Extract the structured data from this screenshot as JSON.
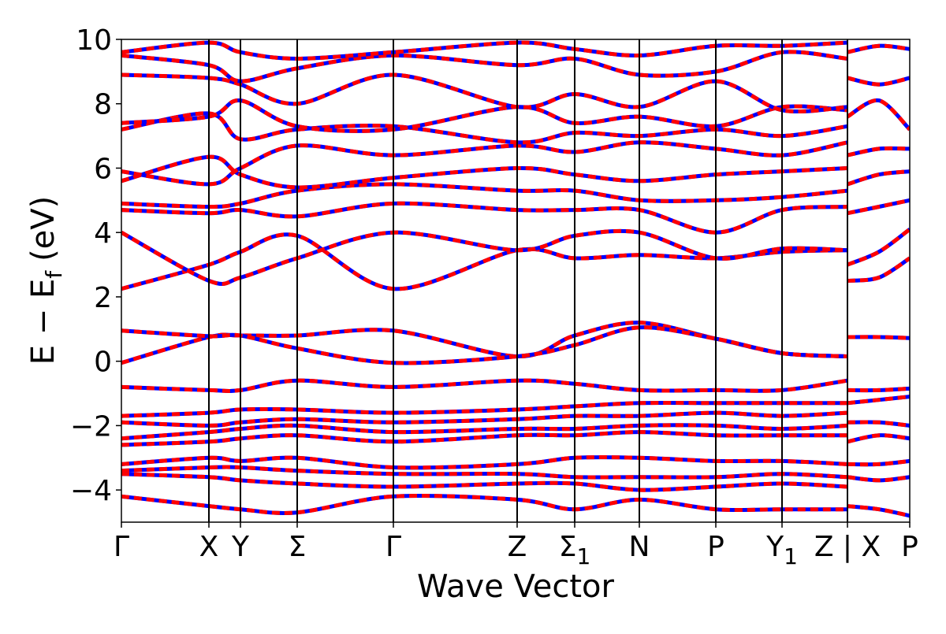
{
  "chart_data": {
    "type": "line",
    "xlabel": "Wave Vector",
    "ylabel": "E − E",
    "ylabel_subscript": "f",
    "ylabel_unit": "(eV)",
    "ylim": [
      -5,
      10
    ],
    "yticks": [
      -4,
      -2,
      0,
      2,
      4,
      6,
      8,
      10
    ],
    "xlim": [
      0,
      1
    ],
    "grid": false,
    "colors": {
      "dft": "#0000ff",
      "wannier": "#ff0000",
      "kpath_lines": "#000000"
    },
    "x_ticks": [
      {
        "label": "Γ",
        "sub": "",
        "x": 0.0
      },
      {
        "label": "X",
        "sub": "",
        "x": 0.111
      },
      {
        "label": "Y",
        "sub": "",
        "x": 0.151
      },
      {
        "label": "Σ",
        "sub": "",
        "x": 0.223
      },
      {
        "label": "Γ",
        "sub": "",
        "x": 0.345
      },
      {
        "label": "Z",
        "sub": "",
        "x": 0.502
      },
      {
        "label": "Σ",
        "sub": "1",
        "x": 0.575
      },
      {
        "label": "N",
        "sub": "",
        "x": 0.657
      },
      {
        "label": "P",
        "sub": "",
        "x": 0.754
      },
      {
        "label": "Y",
        "sub": "1",
        "x": 0.838
      },
      {
        "label": "Z | X",
        "sub": "",
        "x": 0.921
      },
      {
        "label": "P",
        "sub": "",
        "x": 1.0
      }
    ],
    "series": [
      {
        "x": [
          0,
          0.111,
          0.151,
          0.223,
          0.345,
          0.502,
          0.575,
          0.657,
          0.754,
          0.838,
          0.921
        ],
        "values": [
          -4.2,
          -4.5,
          -4.6,
          -4.7,
          -4.2,
          -4.3,
          -4.6,
          -4.3,
          -4.6,
          -4.6,
          -4.6
        ]
      },
      {
        "x": [
          0,
          0.111,
          0.151,
          0.223,
          0.345,
          0.502,
          0.575,
          0.657,
          0.754,
          0.838,
          0.921
        ],
        "values": [
          -3.5,
          -3.6,
          -3.7,
          -3.8,
          -3.9,
          -3.8,
          -3.8,
          -4.0,
          -3.9,
          -3.8,
          -3.9
        ]
      },
      {
        "x": [
          0,
          0.111,
          0.151,
          0.223,
          0.345,
          0.502,
          0.575,
          0.657,
          0.754,
          0.838,
          0.921
        ],
        "values": [
          -3.4,
          -3.3,
          -3.3,
          -3.4,
          -3.5,
          -3.5,
          -3.6,
          -3.6,
          -3.6,
          -3.5,
          -3.6
        ]
      },
      {
        "x": [
          0,
          0.111,
          0.151,
          0.223,
          0.345,
          0.502,
          0.575,
          0.657,
          0.754,
          0.838,
          0.921
        ],
        "values": [
          -3.2,
          -3.0,
          -3.1,
          -3.0,
          -3.3,
          -3.2,
          -3.0,
          -3.0,
          -3.1,
          -3.1,
          -3.2
        ]
      },
      {
        "x": [
          0,
          0.111,
          0.151,
          0.223,
          0.345,
          0.502,
          0.575,
          0.657,
          0.754,
          0.838,
          0.921
        ],
        "values": [
          -2.6,
          -2.5,
          -2.4,
          -2.3,
          -2.5,
          -2.3,
          -2.3,
          -2.2,
          -2.3,
          -2.3,
          -2.3
        ]
      },
      {
        "x": [
          0,
          0.111,
          0.151,
          0.223,
          0.345,
          0.502,
          0.575,
          0.657,
          0.754,
          0.838,
          0.921
        ],
        "values": [
          -2.4,
          -2.2,
          -2.1,
          -2.0,
          -2.2,
          -2.1,
          -2.1,
          -2.0,
          -2.0,
          -2.1,
          -2.0
        ]
      },
      {
        "x": [
          0,
          0.111,
          0.151,
          0.223,
          0.345,
          0.502,
          0.575,
          0.657,
          0.754,
          0.838,
          0.921
        ],
        "values": [
          -1.9,
          -2.0,
          -1.9,
          -1.8,
          -1.9,
          -1.8,
          -1.7,
          -1.7,
          -1.6,
          -1.7,
          -1.6
        ]
      },
      {
        "x": [
          0,
          0.111,
          0.151,
          0.223,
          0.345,
          0.502,
          0.575,
          0.657,
          0.754,
          0.838,
          0.921
        ],
        "values": [
          -1.7,
          -1.6,
          -1.5,
          -1.5,
          -1.6,
          -1.5,
          -1.4,
          -1.3,
          -1.3,
          -1.3,
          -1.3
        ]
      },
      {
        "x": [
          0,
          0.111,
          0.151,
          0.223,
          0.345,
          0.502,
          0.575,
          0.657,
          0.754,
          0.838,
          0.921
        ],
        "values": [
          -0.8,
          -0.9,
          -0.9,
          -0.6,
          -0.8,
          -0.6,
          -0.7,
          -0.9,
          -0.9,
          -0.9,
          -0.6
        ]
      },
      {
        "x": [
          0,
          0.111,
          0.151,
          0.223,
          0.345,
          0.502,
          0.575,
          0.657,
          0.754,
          0.838,
          0.921
        ],
        "values": [
          -0.05,
          0.75,
          0.8,
          0.8,
          0.95,
          0.15,
          0.8,
          1.2,
          0.7,
          0.25,
          0.15
        ]
      },
      {
        "x": [
          0,
          0.111,
          0.151,
          0.223,
          0.345,
          0.502,
          0.575,
          0.657,
          0.754,
          0.838,
          0.921
        ],
        "values": [
          0.95,
          0.78,
          0.8,
          0.4,
          -0.05,
          0.15,
          0.5,
          1.05,
          0.7,
          0.25,
          0.15
        ]
      },
      {
        "x": [
          0,
          0.111,
          0.151,
          0.223,
          0.345,
          0.502,
          0.575,
          0.657,
          0.754,
          0.838,
          0.921
        ],
        "values": [
          2.25,
          3.0,
          3.4,
          3.9,
          2.25,
          3.45,
          3.2,
          3.3,
          3.2,
          3.4,
          3.45
        ]
      },
      {
        "x": [
          0,
          0.111,
          0.151,
          0.223,
          0.345,
          0.502,
          0.575,
          0.657,
          0.754,
          0.838,
          0.921
        ],
        "values": [
          4.0,
          2.5,
          2.6,
          3.2,
          4.0,
          3.45,
          3.9,
          4.0,
          3.2,
          3.5,
          3.45
        ]
      },
      {
        "x": [
          0,
          0.111,
          0.151,
          0.223,
          0.345,
          0.502,
          0.575,
          0.657,
          0.754,
          0.838,
          0.921
        ],
        "values": [
          4.7,
          4.6,
          4.7,
          4.5,
          4.9,
          4.7,
          4.7,
          4.7,
          4.0,
          4.7,
          4.8
        ]
      },
      {
        "x": [
          0,
          0.111,
          0.151,
          0.223,
          0.345,
          0.502,
          0.575,
          0.657,
          0.754,
          0.838,
          0.921
        ],
        "values": [
          4.9,
          4.8,
          4.9,
          5.3,
          5.5,
          5.3,
          5.3,
          5.0,
          5.0,
          5.1,
          5.3
        ]
      },
      {
        "x": [
          0,
          0.111,
          0.151,
          0.223,
          0.345,
          0.502,
          0.575,
          0.657,
          0.754,
          0.838,
          0.921
        ],
        "values": [
          5.6,
          6.35,
          5.8,
          5.4,
          5.7,
          6.0,
          5.8,
          5.6,
          5.8,
          5.9,
          6.0
        ]
      },
      {
        "x": [
          0,
          0.111,
          0.151,
          0.223,
          0.345,
          0.502,
          0.575,
          0.657,
          0.754,
          0.838,
          0.921
        ],
        "values": [
          5.9,
          5.5,
          6.0,
          6.7,
          6.4,
          6.7,
          6.5,
          6.8,
          6.6,
          6.4,
          6.8
        ]
      },
      {
        "x": [
          0,
          0.111,
          0.151,
          0.223,
          0.345,
          0.502,
          0.575,
          0.657,
          0.754,
          0.838,
          0.921
        ],
        "values": [
          7.2,
          7.7,
          6.9,
          7.2,
          7.3,
          6.8,
          7.1,
          7.0,
          7.2,
          7.0,
          7.3
        ]
      },
      {
        "x": [
          0,
          0.111,
          0.151,
          0.223,
          0.345,
          0.502,
          0.575,
          0.657,
          0.754,
          0.838,
          0.921
        ],
        "values": [
          7.4,
          7.6,
          8.1,
          7.3,
          7.2,
          7.9,
          7.4,
          7.6,
          7.3,
          7.9,
          7.8
        ]
      },
      {
        "x": [
          0,
          0.111,
          0.151,
          0.223,
          0.345,
          0.502,
          0.575,
          0.657,
          0.754,
          0.838,
          0.921
        ],
        "values": [
          8.9,
          8.8,
          8.6,
          8.0,
          8.9,
          7.9,
          8.3,
          7.9,
          8.7,
          7.8,
          7.9
        ]
      },
      {
        "x": [
          0,
          0.111,
          0.151,
          0.223,
          0.345,
          0.502,
          0.575,
          0.657,
          0.754,
          0.838,
          0.921
        ],
        "values": [
          9.5,
          9.2,
          8.7,
          9.1,
          9.5,
          9.2,
          9.4,
          8.9,
          9.0,
          9.6,
          9.4
        ]
      },
      {
        "x": [
          0,
          0.111,
          0.151,
          0.223,
          0.345,
          0.502,
          0.575,
          0.657,
          0.754,
          0.838,
          0.921
        ],
        "values": [
          9.6,
          9.9,
          9.6,
          9.4,
          9.6,
          9.9,
          9.7,
          9.5,
          9.8,
          9.8,
          9.9
        ]
      },
      {
        "x": [
          0.921,
          0.961,
          1.0
        ],
        "values": [
          -4.5,
          -4.6,
          -4.8
        ]
      },
      {
        "x": [
          0.921,
          0.961,
          1.0
        ],
        "values": [
          -3.6,
          -3.7,
          -3.6
        ]
      },
      {
        "x": [
          0.921,
          0.961,
          1.0
        ],
        "values": [
          -3.2,
          -3.2,
          -3.1
        ]
      },
      {
        "x": [
          0.921,
          0.961,
          1.0
        ],
        "values": [
          -2.5,
          -2.3,
          -2.4
        ]
      },
      {
        "x": [
          0.921,
          0.961,
          1.0
        ],
        "values": [
          -1.9,
          -1.9,
          -2.0
        ]
      },
      {
        "x": [
          0.921,
          0.961,
          1.0
        ],
        "values": [
          -1.3,
          -1.2,
          -1.1
        ]
      },
      {
        "x": [
          0.921,
          0.961,
          1.0
        ],
        "values": [
          -0.9,
          -0.9,
          -0.85
        ]
      },
      {
        "x": [
          0.921,
          0.961,
          1.0
        ],
        "values": [
          0.75,
          0.75,
          0.72
        ]
      },
      {
        "x": [
          0.921,
          0.961,
          1.0
        ],
        "values": [
          2.5,
          2.6,
          3.2
        ]
      },
      {
        "x": [
          0.921,
          0.961,
          1.0
        ],
        "values": [
          3.0,
          3.4,
          4.1
        ]
      },
      {
        "x": [
          0.921,
          0.961,
          1.0
        ],
        "values": [
          4.6,
          4.8,
          5.0
        ]
      },
      {
        "x": [
          0.921,
          0.961,
          1.0
        ],
        "values": [
          5.5,
          5.8,
          5.9
        ]
      },
      {
        "x": [
          0.921,
          0.961,
          1.0
        ],
        "values": [
          6.4,
          6.6,
          6.6
        ]
      },
      {
        "x": [
          0.921,
          0.961,
          1.0
        ],
        "values": [
          7.6,
          8.1,
          7.2
        ]
      },
      {
        "x": [
          0.921,
          0.961,
          1.0
        ],
        "values": [
          8.8,
          8.6,
          8.8
        ]
      },
      {
        "x": [
          0.921,
          0.961,
          1.0
        ],
        "values": [
          9.6,
          9.8,
          9.7
        ]
      }
    ]
  }
}
